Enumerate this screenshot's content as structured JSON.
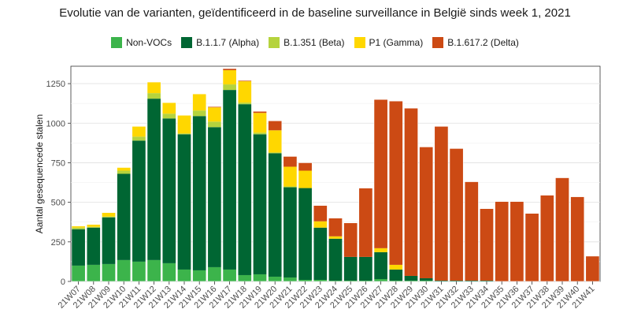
{
  "chart_data": {
    "type": "bar",
    "stacked": true,
    "title": "Evolutie van de varianten, geïdentificeerd in de baseline surveillance in België sinds week 1, 2021",
    "xlabel": "",
    "ylabel": "Aantal gesequencede stalen",
    "ylim": [
      0,
      1360
    ],
    "yticks": [
      0,
      250,
      500,
      750,
      1000,
      1250
    ],
    "grid": true,
    "legend_position": "top",
    "categories": [
      "21W07",
      "21W08",
      "21W09",
      "21W10",
      "21W11",
      "21W12",
      "21W13",
      "21W14",
      "21W15",
      "21W16",
      "21W17",
      "21W18",
      "21W19",
      "21W20",
      "21W21",
      "21W22",
      "21W23",
      "21W24",
      "21W25",
      "21W26",
      "21W27",
      "21W28",
      "21W29",
      "21W30",
      "21W31",
      "21W32",
      "21W33",
      "21W34",
      "21W35",
      "21W36",
      "21W37",
      "21W38",
      "21W39",
      "21W40",
      "21W41"
    ],
    "series": [
      {
        "name": "Non-VOCs",
        "color": "#3cb44b",
        "values": [
          100,
          105,
          110,
          135,
          125,
          135,
          115,
          75,
          70,
          90,
          75,
          40,
          45,
          30,
          25,
          10,
          10,
          5,
          5,
          5,
          15,
          5,
          5,
          5,
          0,
          0,
          0,
          0,
          0,
          0,
          0,
          0,
          0,
          0,
          0
        ]
      },
      {
        "name": "B.1.1.7 (Alpha)",
        "color": "#006633",
        "values": [
          230,
          235,
          295,
          545,
          765,
          1020,
          915,
          855,
          975,
          885,
          1135,
          1080,
          885,
          780,
          570,
          580,
          330,
          265,
          150,
          150,
          170,
          70,
          30,
          15,
          5,
          5,
          5,
          5,
          0,
          0,
          0,
          0,
          0,
          0,
          0
        ]
      },
      {
        "name": "B.1.351 (Beta)",
        "color": "#b5d33d",
        "values": [
          10,
          5,
          5,
          20,
          25,
          35,
          30,
          5,
          35,
          35,
          35,
          10,
          10,
          5,
          5,
          0,
          0,
          0,
          0,
          0,
          0,
          0,
          0,
          0,
          0,
          0,
          0,
          0,
          0,
          0,
          0,
          0,
          0,
          0,
          0
        ]
      },
      {
        "name": "P1 (Gamma)",
        "color": "#ffd700",
        "values": [
          10,
          15,
          25,
          20,
          65,
          70,
          70,
          115,
          105,
          90,
          90,
          135,
          125,
          140,
          125,
          110,
          40,
          15,
          0,
          0,
          25,
          30,
          0,
          0,
          0,
          0,
          0,
          0,
          0,
          0,
          0,
          0,
          0,
          0,
          0
        ]
      },
      {
        "name": "B.1.617.2 (Delta)",
        "color": "#cc4a14",
        "values": [
          0,
          0,
          0,
          0,
          0,
          0,
          0,
          0,
          0,
          5,
          10,
          5,
          10,
          60,
          65,
          50,
          100,
          115,
          215,
          435,
          940,
          1035,
          1060,
          830,
          975,
          835,
          625,
          455,
          505,
          505,
          430,
          545,
          655,
          535,
          160
        ]
      }
    ]
  }
}
